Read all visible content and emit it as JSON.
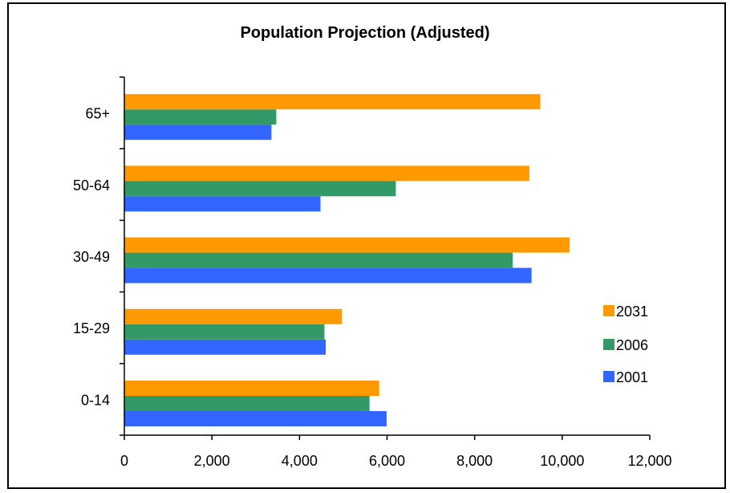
{
  "chart_data": {
    "type": "bar",
    "orientation": "horizontal",
    "title": "Population Projection (Adjusted)",
    "xlabel": "",
    "ylabel": "",
    "categories": [
      "0-14",
      "15-29",
      "30-49",
      "50-64",
      "65+"
    ],
    "series": [
      {
        "name": "2001",
        "color": "#3366ff",
        "values": [
          5990,
          4600,
          9300,
          4480,
          3360
        ]
      },
      {
        "name": "2006",
        "color": "#339966",
        "values": [
          5600,
          4570,
          8870,
          6200,
          3470
        ]
      },
      {
        "name": "2031",
        "color": "#ff9900",
        "values": [
          5820,
          4970,
          10170,
          9250,
          9500
        ]
      }
    ],
    "xlim": [
      0,
      12000
    ],
    "xticks": [
      "0",
      "2,000",
      "4,000",
      "6,000",
      "8,000",
      "10,000",
      "12,000"
    ],
    "grid": false,
    "legend": {
      "position": "right",
      "order": [
        "2031",
        "2006",
        "2001"
      ]
    }
  }
}
